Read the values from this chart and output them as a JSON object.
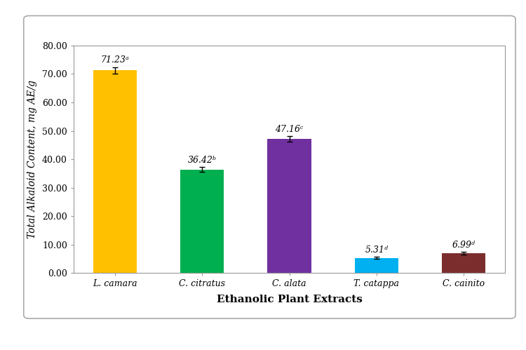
{
  "categories": [
    "L. camara",
    "C. citratus",
    "C. alata",
    "T. catappa",
    "C. cainito"
  ],
  "values": [
    71.23,
    36.42,
    47.16,
    5.31,
    6.99
  ],
  "errors": [
    1.2,
    0.8,
    0.9,
    0.4,
    0.5
  ],
  "bar_colors": [
    "#FFC000",
    "#00B050",
    "#7030A0",
    "#00B0F0",
    "#7B2D2D"
  ],
  "labels": [
    "71.23ᵃ",
    "36.42ᵇ",
    "47.16ᶜ",
    "5.31ᵈ",
    "6.99ᵈ"
  ],
  "ylabel": "Total Alkaloid Content, mg AE/g",
  "xlabel": "Ethanolic Plant Extracts",
  "ylim": [
    0,
    80
  ],
  "yticks": [
    0.0,
    10.0,
    20.0,
    30.0,
    40.0,
    50.0,
    60.0,
    70.0,
    80.0
  ],
  "outer_bg": "#ffffff",
  "panel_bg": "#ffffff",
  "panel_border": "#aaaaaa",
  "xlabel_fontsize": 11,
  "ylabel_fontsize": 10,
  "tick_fontsize": 9,
  "label_fontsize": 9,
  "bar_width": 0.5
}
